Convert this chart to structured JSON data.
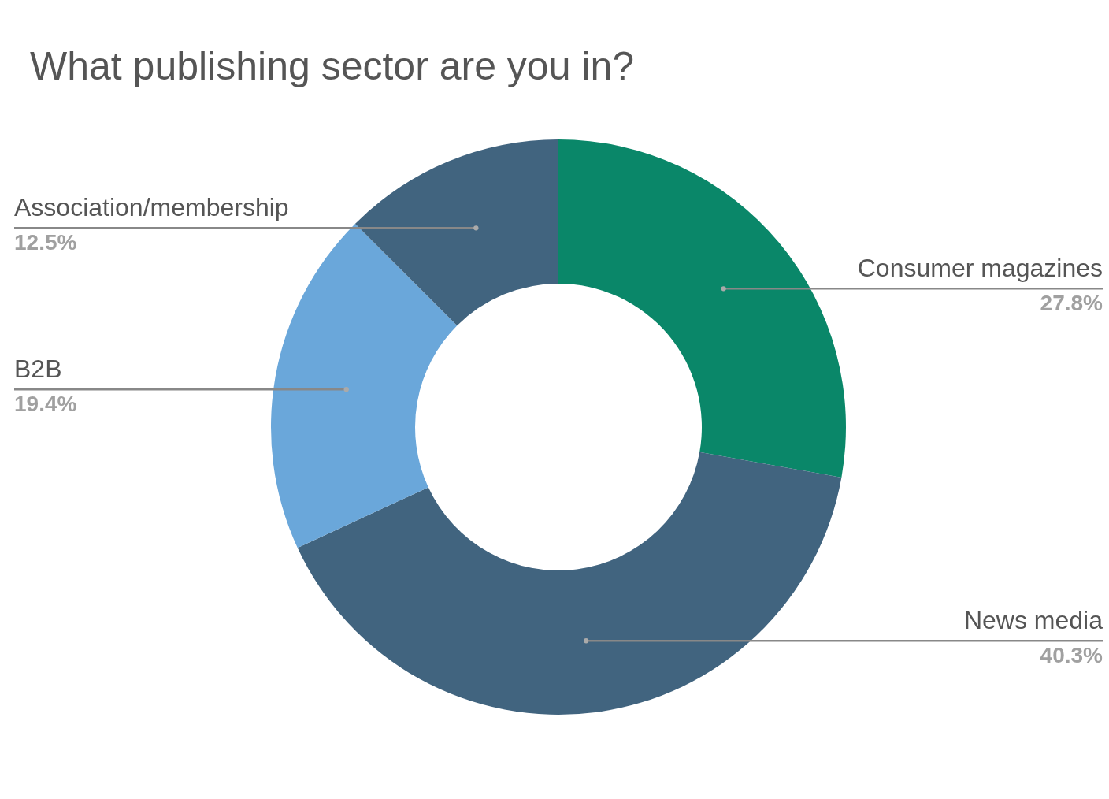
{
  "chart_data": {
    "type": "donut",
    "title": "What publishing sector are you in?",
    "categories": [
      "Consumer magazines",
      "News media",
      "B2B",
      "Association/membership"
    ],
    "values": [
      27.8,
      40.3,
      19.4,
      12.5
    ],
    "colors": [
      "#0a8769",
      "#41647f",
      "#6aa7da",
      "#41647f"
    ],
    "value_labels": [
      "27.8%",
      "40.3%",
      "19.4%",
      "12.5%"
    ]
  }
}
